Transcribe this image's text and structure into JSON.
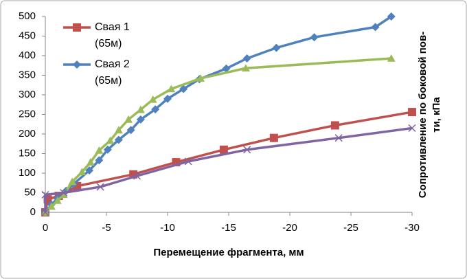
{
  "chart_data": {
    "type": "line",
    "xlabel": "Перемещение фрагмента, мм",
    "ylabel": [
      "Сопротивление по боковой пов-",
      "ти, кПа"
    ],
    "xlim": [
      0,
      -30
    ],
    "xticks": [
      0,
      -5,
      -10,
      -15,
      -20,
      -25,
      -30
    ],
    "ylim": [
      0,
      500
    ],
    "yticks": [
      0,
      50,
      100,
      150,
      200,
      250,
      300,
      350,
      400,
      450,
      500
    ],
    "grid": false,
    "legend": "upper left",
    "series": [
      {
        "name": "Свая 1 (65м)",
        "color": "#c0504d",
        "marker": "square",
        "x": [
          0,
          -0.2,
          -1.1,
          -2.6,
          -7.2,
          -10.7,
          -14.6,
          -18.7,
          -23.7,
          -30
        ],
        "values": [
          0,
          33,
          42,
          67,
          97,
          128,
          160,
          190,
          222,
          256
        ]
      },
      {
        "name": "Свая 2 (65м)",
        "color": "#4f81bd",
        "marker": "diamond",
        "x": [
          0,
          -0.5,
          -1,
          -1.7,
          -2.3,
          -3.6,
          -4.4,
          -5.1,
          -6.0,
          -7.0,
          -7.8,
          -9.0,
          -10,
          -11.3,
          -12.6,
          -14.8,
          -16.5,
          -18.9,
          -22,
          -27,
          -28.3
        ],
        "values": [
          0,
          20,
          35,
          55,
          72,
          107,
          133,
          160,
          185,
          210,
          237,
          263,
          290,
          315,
          340,
          367,
          393,
          420,
          447,
          473,
          500
        ]
      },
      {
        "color": "#9bbb59",
        "marker": "triangle",
        "x": [
          0,
          -0.5,
          -1,
          -1.5,
          -2.2,
          -3,
          -3.7,
          -4.4,
          -5.3,
          -6,
          -6.8,
          -7.8,
          -8.8,
          -10.3,
          -12.7,
          -16.4,
          -28.3
        ],
        "values": [
          0,
          15,
          30,
          45,
          78,
          103,
          128,
          158,
          183,
          210,
          237,
          262,
          288,
          315,
          342,
          368,
          393
        ]
      },
      {
        "color": "#8064a2",
        "marker": "x",
        "x": [
          0,
          0,
          -1.5,
          -4.5,
          -7.5,
          -11.7,
          -16.5,
          -24,
          -30
        ],
        "values": [
          0,
          45,
          50,
          65,
          93,
          130,
          160,
          190,
          215
        ]
      }
    ]
  }
}
